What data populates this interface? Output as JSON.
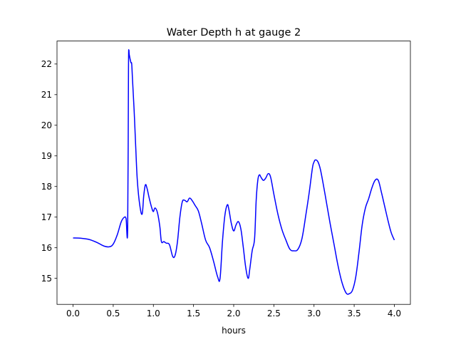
{
  "chart_data": {
    "type": "line",
    "title": "Water Depth h at gauge 2",
    "xlabel": "hours",
    "ylabel": "",
    "xlim": [
      -0.2,
      4.2
    ],
    "ylim": [
      14.15,
      22.75
    ],
    "xticks": [
      0.0,
      0.5,
      1.0,
      1.5,
      2.0,
      2.5,
      3.0,
      3.5,
      4.0
    ],
    "xtick_labels": [
      "0.0",
      "0.5",
      "1.0",
      "1.5",
      "2.0",
      "2.5",
      "3.0",
      "3.5",
      "4.0"
    ],
    "yticks": [
      15,
      16,
      17,
      18,
      19,
      20,
      21,
      22
    ],
    "ytick_labels": [
      "15",
      "16",
      "17",
      "18",
      "19",
      "20",
      "21",
      "22"
    ],
    "grid": false,
    "legend": "none",
    "series": [
      {
        "color": "#0000ff",
        "x": [
          0.0,
          0.1,
          0.2,
          0.3,
          0.38,
          0.45,
          0.5,
          0.55,
          0.6,
          0.64,
          0.66,
          0.68,
          0.69,
          0.695,
          0.7,
          0.72,
          0.73,
          0.74,
          0.76,
          0.78,
          0.8,
          0.83,
          0.86,
          0.88,
          0.9,
          0.92,
          0.95,
          0.98,
          1.0,
          1.02,
          1.05,
          1.08,
          1.1,
          1.13,
          1.16,
          1.2,
          1.24,
          1.27,
          1.3,
          1.33,
          1.36,
          1.39,
          1.42,
          1.45,
          1.48,
          1.52,
          1.56,
          1.6,
          1.65,
          1.7,
          1.75,
          1.8,
          1.83,
          1.86,
          1.89,
          1.92,
          1.94,
          1.97,
          2.0,
          2.03,
          2.06,
          2.09,
          2.12,
          2.15,
          2.18,
          2.2,
          2.23,
          2.26,
          2.28,
          2.3,
          2.32,
          2.34,
          2.37,
          2.4,
          2.43,
          2.46,
          2.5,
          2.55,
          2.6,
          2.65,
          2.7,
          2.75,
          2.8,
          2.85,
          2.9,
          2.94,
          2.98,
          3.0,
          3.02,
          3.05,
          3.08,
          3.12,
          3.16,
          3.2,
          3.25,
          3.3,
          3.35,
          3.4,
          3.44,
          3.48,
          3.52,
          3.56,
          3.6,
          3.64,
          3.68,
          3.72,
          3.76,
          3.8,
          3.84,
          3.88,
          3.92,
          3.96,
          4.0
        ],
        "y": [
          16.32,
          16.31,
          16.27,
          16.17,
          16.06,
          16.03,
          16.12,
          16.42,
          16.85,
          17.0,
          16.95,
          16.65,
          21.8,
          22.42,
          22.3,
          22.05,
          22.0,
          21.5,
          20.5,
          19.3,
          18.2,
          17.4,
          17.1,
          17.7,
          18.05,
          17.95,
          17.6,
          17.3,
          17.18,
          17.3,
          17.15,
          16.7,
          16.2,
          16.2,
          16.15,
          16.1,
          15.72,
          15.75,
          16.2,
          17.0,
          17.5,
          17.55,
          17.5,
          17.62,
          17.55,
          17.38,
          17.2,
          16.8,
          16.25,
          16.0,
          15.55,
          15.05,
          15.0,
          16.2,
          17.05,
          17.4,
          17.25,
          16.8,
          16.55,
          16.75,
          16.85,
          16.6,
          16.0,
          15.35,
          15.0,
          15.3,
          15.9,
          16.3,
          17.55,
          18.2,
          18.38,
          18.3,
          18.2,
          18.28,
          18.42,
          18.3,
          17.75,
          17.1,
          16.6,
          16.25,
          15.95,
          15.9,
          15.95,
          16.3,
          17.1,
          17.8,
          18.6,
          18.8,
          18.87,
          18.8,
          18.55,
          18.0,
          17.4,
          16.8,
          16.1,
          15.4,
          14.85,
          14.52,
          14.5,
          14.62,
          15.05,
          15.85,
          16.75,
          17.3,
          17.6,
          17.95,
          18.2,
          18.2,
          17.8,
          17.35,
          16.9,
          16.5,
          16.25
        ]
      }
    ]
  }
}
